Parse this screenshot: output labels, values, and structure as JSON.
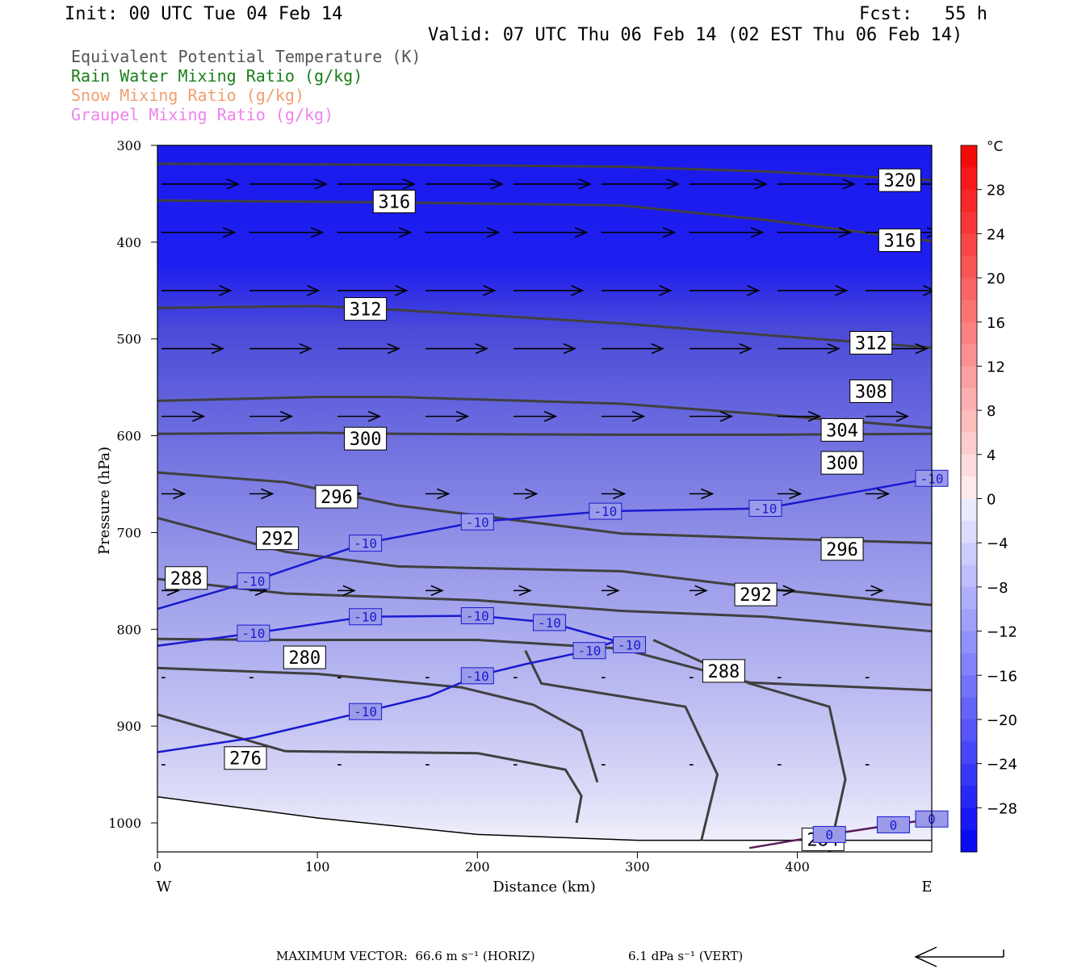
{
  "header": {
    "init": "Init: 00 UTC Tue 04 Feb 14",
    "fcst": "Fcst:   55 h",
    "valid": "Valid: 07 UTC Thu 06 Feb 14 (02 EST Thu 06 Feb 14)"
  },
  "legend": [
    {
      "text": "Equivalent Potential Temperature (K)",
      "color": "#555555"
    },
    {
      "text": "Rain Water Mixing Ratio (g/kg)",
      "color": "#1a7f1a"
    },
    {
      "text": "Snow Mixing Ratio (g/kg)",
      "color": "#f0a070"
    },
    {
      "text": "Graupel Mixing Ratio (g/kg)",
      "color": "#ee82ee"
    }
  ],
  "footer": {
    "max_vector": "MAXIMUM VECTOR:  66.6 m s⁻¹ (HORIZ)",
    "vert": "6.1 dPa s⁻¹ (VERT)"
  },
  "chart_data": {
    "type": "heatmap",
    "title": "",
    "xlabel": "Distance (km)",
    "ylabel": "Pressure (hPa)",
    "xlim": [
      0,
      484
    ],
    "ylim": [
      1030,
      300
    ],
    "x_ticks": [
      0,
      100,
      200,
      300,
      400
    ],
    "y_ticks": [
      300,
      400,
      500,
      600,
      700,
      800,
      900,
      1000
    ],
    "x_end_labels": {
      "left": "W",
      "right": "E"
    },
    "colorbar": {
      "unit": "°C",
      "ticks": [
        28,
        24,
        20,
        16,
        12,
        8,
        4,
        0,
        -4,
        -8,
        -12,
        -16,
        -20,
        -24,
        -28
      ],
      "range": [
        -32,
        32
      ]
    },
    "theta_e_contours": [
      {
        "value": 320,
        "points": [
          [
            0,
            319
          ],
          [
            150,
            320
          ],
          [
            290,
            322
          ],
          [
            380,
            327
          ],
          [
            484,
            336
          ]
        ],
        "labels": [
          [
            464,
            336
          ]
        ]
      },
      {
        "value": 316,
        "points": [
          [
            0,
            357
          ],
          [
            150,
            359
          ],
          [
            290,
            362
          ],
          [
            380,
            377
          ],
          [
            484,
            399
          ]
        ],
        "labels": [
          [
            148,
            358
          ],
          [
            464,
            398
          ]
        ]
      },
      {
        "value": 312,
        "points": [
          [
            0,
            468
          ],
          [
            100,
            466
          ],
          [
            150,
            470
          ],
          [
            290,
            484
          ],
          [
            380,
            496
          ],
          [
            484,
            509
          ]
        ],
        "labels": [
          [
            130,
            469
          ],
          [
            446,
            504
          ]
        ]
      },
      {
        "value": 308,
        "points": [
          [
            0,
            564
          ],
          [
            100,
            560
          ],
          [
            150,
            560
          ],
          [
            290,
            567
          ],
          [
            380,
            578
          ],
          [
            484,
            592
          ]
        ],
        "labels": [
          [
            446,
            554
          ]
        ]
      },
      {
        "value": 304,
        "points": [
          [
            0,
            598
          ],
          [
            100,
            597
          ],
          [
            150,
            598
          ],
          [
            290,
            599
          ],
          [
            380,
            599
          ],
          [
            484,
            598
          ]
        ],
        "labels": [
          [
            428,
            594
          ]
        ]
      },
      {
        "value": 300,
        "points": [
          [
            0,
            638
          ],
          [
            80,
            648
          ],
          [
            150,
            672
          ],
          [
            290,
            701
          ],
          [
            380,
            706
          ],
          [
            484,
            711
          ]
        ],
        "labels": [
          [
            130,
            603
          ],
          [
            428,
            628
          ]
        ]
      },
      {
        "value": 296,
        "points": [
          [
            0,
            685
          ],
          [
            80,
            720
          ],
          [
            150,
            735
          ],
          [
            290,
            740
          ],
          [
            380,
            758
          ],
          [
            484,
            775
          ]
        ],
        "labels": [
          [
            112,
            663
          ],
          [
            428,
            717
          ]
        ]
      },
      {
        "value": 292,
        "points": [
          [
            0,
            748
          ],
          [
            80,
            763
          ],
          [
            200,
            770
          ],
          [
            290,
            781
          ],
          [
            380,
            787
          ],
          [
            484,
            802
          ]
        ],
        "labels": [
          [
            75,
            706
          ],
          [
            374,
            764
          ]
        ]
      },
      {
        "value": 288,
        "points": [
          [
            0,
            810
          ],
          [
            80,
            811
          ],
          [
            200,
            811
          ],
          [
            290,
            820
          ],
          [
            370,
            855
          ],
          [
            484,
            863
          ]
        ],
        "labels": [
          [
            18,
            747
          ],
          [
            354,
            843
          ]
        ]
      },
      {
        "value": 280,
        "points": [
          [
            0,
            840
          ],
          [
            100,
            846
          ],
          [
            190,
            860
          ],
          [
            235,
            878
          ],
          [
            265,
            905
          ],
          [
            275,
            958
          ]
        ],
        "labels": [
          [
            92,
            829
          ]
        ]
      },
      {
        "value": 276,
        "points": [
          [
            0,
            888
          ],
          [
            80,
            926
          ],
          [
            200,
            928
          ],
          [
            255,
            945
          ],
          [
            265,
            972
          ],
          [
            262,
            1000
          ]
        ],
        "labels": [
          [
            55,
            933
          ]
        ]
      },
      {
        "value": 284,
        "points": [
          [
            230,
            822
          ],
          [
            240,
            856
          ],
          [
            330,
            880
          ],
          [
            350,
            950
          ],
          [
            340,
            1018
          ]
        ],
        "labels": [
          [
            416,
            1017
          ]
        ]
      },
      {
        "value": 284,
        "points": [
          [
            310,
            811
          ],
          [
            370,
            856
          ],
          [
            420,
            880
          ],
          [
            430,
            955
          ],
          [
            420,
            1030
          ]
        ],
        "labels": []
      }
    ],
    "isotherms": [
      {
        "value": -10,
        "points": [
          [
            0,
            779
          ],
          [
            60,
            750
          ],
          [
            130,
            711
          ],
          [
            200,
            689
          ],
          [
            280,
            678
          ],
          [
            380,
            675
          ],
          [
            484,
            644
          ]
        ]
      },
      {
        "value": -10,
        "points": [
          [
            0,
            817
          ],
          [
            60,
            804
          ],
          [
            130,
            787
          ],
          [
            200,
            786
          ],
          [
            245,
            793
          ],
          [
            295,
            816
          ]
        ]
      },
      {
        "value": -10,
        "points": [
          [
            0,
            927
          ],
          [
            60,
            912
          ],
          [
            130,
            885
          ],
          [
            170,
            869
          ],
          [
            200,
            848
          ],
          [
            230,
            836
          ],
          [
            270,
            822
          ],
          [
            290,
            810
          ]
        ]
      },
      {
        "value": 0,
        "points": [
          [
            370,
            1026
          ],
          [
            420,
            1012
          ],
          [
            460,
            1002
          ],
          [
            484,
            996
          ]
        ]
      }
    ],
    "vector_rows": [
      {
        "p": 340,
        "speed": 1.0
      },
      {
        "p": 390,
        "speed": 0.95
      },
      {
        "p": 450,
        "speed": 0.9
      },
      {
        "p": 510,
        "speed": 0.8
      },
      {
        "p": 580,
        "speed": 0.55
      },
      {
        "p": 660,
        "speed": 0.3
      },
      {
        "p": 760,
        "speed": 0.22
      },
      {
        "p": 850,
        "speed": 0.05
      },
      {
        "p": 940,
        "speed": 0.05
      }
    ]
  }
}
